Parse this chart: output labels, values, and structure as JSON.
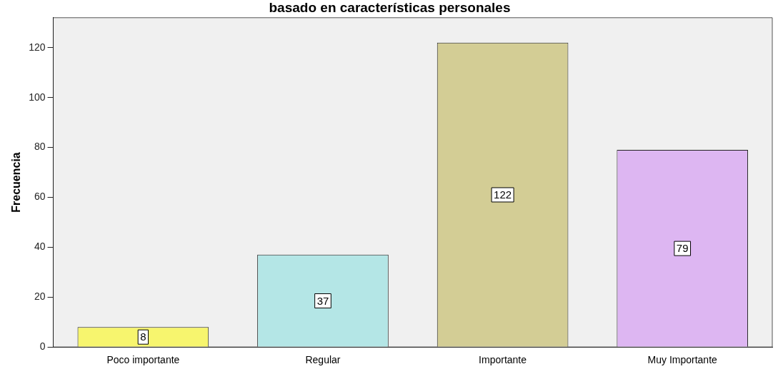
{
  "chart_data": {
    "type": "bar",
    "title": "basado en características personales",
    "ylabel": "Frecuencia",
    "categories": [
      "Poco importante",
      "Regular",
      "Importante",
      "Muy Importante"
    ],
    "values": [
      8,
      37,
      122,
      79
    ],
    "colors": [
      "#f7f56e",
      "#b4e6e6",
      "#d3cd95",
      "#ddb6f2"
    ],
    "ylim": [
      0,
      132
    ],
    "yticks": [
      0,
      20,
      40,
      60,
      80,
      100,
      120
    ],
    "grid": false,
    "legend": false,
    "data_labels": true
  }
}
